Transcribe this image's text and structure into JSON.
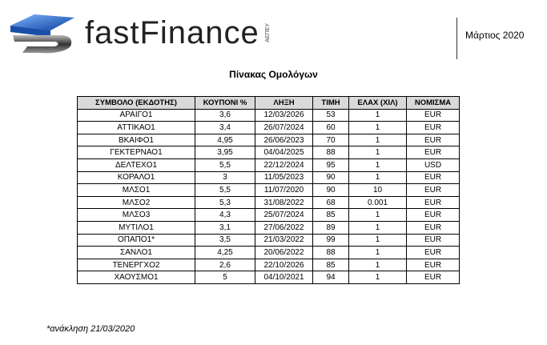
{
  "header": {
    "logo_text": "fastFinance",
    "logo_sub": "ΑΕΠΕΥ",
    "date": "Μάρτιος 2020"
  },
  "title": "Πίνακας Ομολόγων",
  "table": {
    "columns": [
      "ΣΥΜΒΟΛΟ (ΕΚΔΟΤΗΣ)",
      "ΚΟΥΠΟΝΙ %",
      "ΛΗΞΗ",
      "ΤΙΜΗ",
      "ΕΛΑΧ (ΧΙΛ)",
      "ΝΟΜΙΣΜΑ"
    ],
    "rows": [
      [
        "ΑΡΑΙΓΟ1",
        "3,6",
        "12/03/2026",
        "53",
        "1",
        "EUR"
      ],
      [
        "ΑΤΤΙΚΑΟ1",
        "3,4",
        "26/07/2024",
        "60",
        "1",
        "EUR"
      ],
      [
        "ΒΚΑΙΦΟ1",
        "4,95",
        "26/06/2023",
        "70",
        "1",
        "EUR"
      ],
      [
        "ΓΕΚΤΕΡΝΑΟ1",
        "3,95",
        "04/04/2025",
        "88",
        "1",
        "EUR"
      ],
      [
        "ΔΕΛΤΕΧΟ1",
        "5,5",
        "22/12/2024",
        "95",
        "1",
        "USD"
      ],
      [
        "ΚΟΡΑΛΟ1",
        "3",
        "11/05/2023",
        "90",
        "1",
        "EUR"
      ],
      [
        "ΜΛΣΟ1",
        "5,5",
        "11/07/2020",
        "90",
        "10",
        "EUR"
      ],
      [
        "ΜΛΣΟ2",
        "5,3",
        "31/08/2022",
        "68",
        "0.001",
        "EUR"
      ],
      [
        "ΜΛΣΟ3",
        "4,3",
        "25/07/2024",
        "85",
        "1",
        "EUR"
      ],
      [
        "ΜΥΤΙΛΟ1",
        "3,1",
        "27/06/2022",
        "89",
        "1",
        "EUR"
      ],
      [
        "ΟΠΑΠΟ1*",
        "3,5",
        "21/03/2022",
        "99",
        "1",
        "EUR"
      ],
      [
        "ΣΑΝΛΟ1",
        "4,25",
        "20/06/2022",
        "88",
        "1",
        "EUR"
      ],
      [
        "ΤΕΝΕΡΓΧΟ2",
        "2,6",
        "22/10/2026",
        "85",
        "1",
        "EUR"
      ],
      [
        "ΧΑΟΥΣΜΟ1",
        "5",
        "04/10/2021",
        "94",
        "1",
        "EUR"
      ]
    ]
  },
  "footnote": "*ανάκληση 21/03/2020"
}
